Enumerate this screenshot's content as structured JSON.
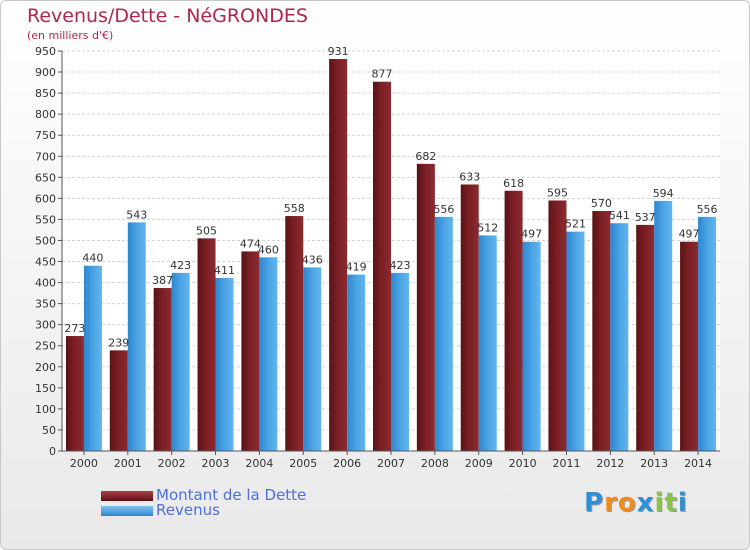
{
  "header": {
    "title": "Revenus/Dette - NéGRONDES",
    "subtitle": "(en milliers d'€)"
  },
  "colors": {
    "debt": "#7a1f24",
    "revenue": "#4aa3e3",
    "title": "#b0264a",
    "legend_text": "#4f6fe0"
  },
  "chart_data": {
    "type": "bar",
    "title": "Revenus/Dette - NéGRONDES",
    "subtitle": "(en milliers d'€)",
    "categories": [
      "2000",
      "2001",
      "2002",
      "2003",
      "2004",
      "2005",
      "2006",
      "2007",
      "2008",
      "2009",
      "2010",
      "2011",
      "2012",
      "2013",
      "2014"
    ],
    "series": [
      {
        "name": "Montant de la Dette",
        "values": [
          273,
          239,
          387,
          505,
          474,
          558,
          931,
          877,
          682,
          633,
          618,
          595,
          570,
          537,
          497
        ]
      },
      {
        "name": "Revenus",
        "values": [
          440,
          543,
          423,
          411,
          460,
          436,
          419,
          423,
          556,
          512,
          497,
          521,
          541,
          594,
          556
        ]
      }
    ],
    "ylim": [
      0,
      950
    ],
    "yticks": [
      0,
      50,
      100,
      150,
      200,
      250,
      300,
      350,
      400,
      450,
      500,
      550,
      600,
      650,
      700,
      750,
      800,
      850,
      900,
      950
    ],
    "grid": true,
    "legend_position": "bottom-left"
  },
  "legend": {
    "debt_label": "Montant de la Dette",
    "revenue_label": "Revenus"
  },
  "logo": {
    "letters": [
      "P",
      "r",
      "o",
      "x",
      "i",
      "t",
      "i"
    ],
    "colors": [
      "#2f8fd6",
      "#f08a1e",
      "#f08a1e",
      "#2f8fd6",
      "#8bc34a",
      "#8bc34a",
      "#2f8fd6"
    ]
  }
}
